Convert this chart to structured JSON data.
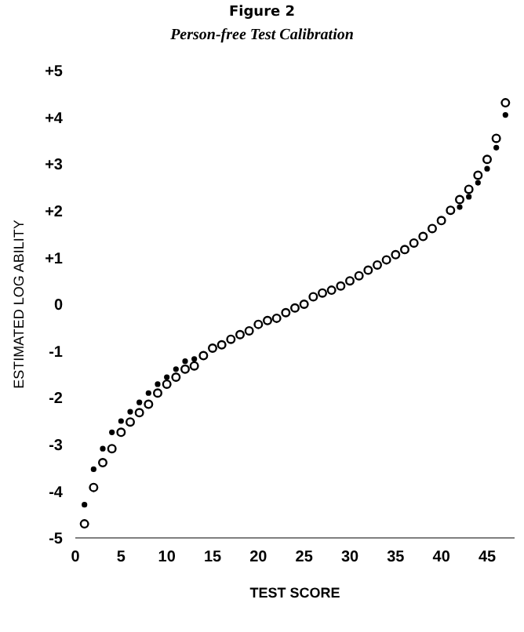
{
  "chart_data": {
    "type": "scatter",
    "title": "Figure 2",
    "subtitle": "Person-free Test Calibration",
    "xlabel": "TEST SCORE",
    "ylabel": "ESTIMATED LOG ABILITY",
    "xlim": [
      0,
      48
    ],
    "xticks": [
      0,
      5,
      10,
      15,
      20,
      25,
      30,
      35,
      40,
      45
    ],
    "ylim": [
      -5,
      5
    ],
    "yticks": [
      {
        "value": 5,
        "label": "+5"
      },
      {
        "value": 4,
        "label": "+4"
      },
      {
        "value": 3,
        "label": "+3"
      },
      {
        "value": 2,
        "label": "+2"
      },
      {
        "value": 1,
        "label": "+1"
      },
      0,
      -1,
      -2,
      -3,
      -4,
      -5
    ],
    "marker": "circle",
    "series": [
      {
        "color": "#000000",
        "x": [
          1,
          2,
          3,
          4,
          5,
          6,
          7,
          8,
          9,
          10,
          11,
          12,
          13,
          14,
          15,
          16,
          17,
          18,
          19,
          20,
          21,
          22,
          23,
          24,
          25,
          26,
          27,
          28,
          29,
          30,
          31,
          32,
          33,
          34,
          35,
          36,
          37,
          38,
          39,
          40,
          41,
          42,
          43,
          44,
          45,
          46,
          47
        ],
        "values": [
          -4.7,
          -3.92,
          -3.39,
          -3.09,
          -2.74,
          -2.52,
          -2.32,
          -2.14,
          -1.9,
          -1.71,
          -1.56,
          -1.39,
          -1.32,
          -1.1,
          -0.94,
          -0.87,
          -0.75,
          -0.65,
          -0.57,
          -0.43,
          -0.35,
          -0.3,
          -0.18,
          -0.08,
          0,
          0.16,
          0.24,
          0.3,
          0.39,
          0.5,
          0.61,
          0.73,
          0.84,
          0.95,
          1.06,
          1.17,
          1.31,
          1.45,
          1.62,
          1.79,
          2.01,
          2.24,
          2.46,
          2.76,
          3.1,
          3.55,
          4.31
        ]
      },
      {
        "color": "#000000",
        "x": [
          1,
          2,
          3,
          4,
          5,
          6,
          7,
          8,
          9,
          10,
          11,
          12,
          13,
          14,
          15,
          16,
          17,
          18,
          19,
          20,
          21,
          22,
          23,
          24,
          25,
          26,
          27,
          28,
          29,
          30,
          31,
          32,
          33,
          34,
          35,
          36,
          37,
          38,
          39,
          40,
          41,
          42,
          43,
          44,
          45,
          46,
          47
        ],
        "values": [
          -4.29,
          -3.53,
          -3.09,
          -2.74,
          -2.5,
          -2.3,
          -2.1,
          -1.9,
          -1.71,
          -1.56,
          -1.39,
          -1.22,
          -1.17,
          null,
          null,
          null,
          null,
          null,
          null,
          null,
          null,
          null,
          null,
          null,
          null,
          null,
          null,
          null,
          null,
          null,
          null,
          null,
          null,
          null,
          null,
          null,
          null,
          null,
          null,
          null,
          null,
          2.08,
          2.3,
          2.6,
          2.9,
          3.35,
          4.05
        ]
      }
    ]
  }
}
